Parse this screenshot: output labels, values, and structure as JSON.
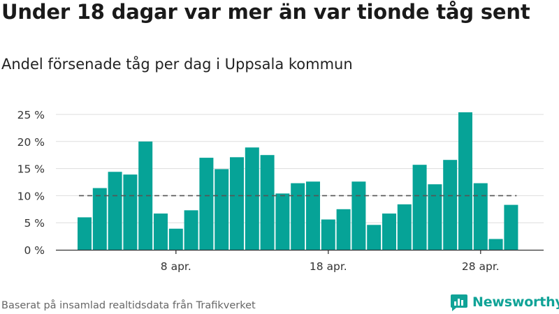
{
  "title": "Under 18 dagar var mer än var tionde tåg sent",
  "subtitle": "Andel försenade tåg per dag i Uppsala kommun",
  "source": "Baserat på insamlad realtidsdata från Trafikverket",
  "brand": {
    "name": "Newsworthy",
    "color": "#10a397"
  },
  "colors": {
    "bar": "#06a397",
    "grid": "#dddddd",
    "reference": "#555555",
    "axis": "#333333"
  },
  "chart_data": {
    "type": "bar",
    "title": "Andel försenade tåg per dag i Uppsala kommun",
    "xlabel": "",
    "ylabel": "",
    "x_ticks": [
      {
        "label": "8 apr.",
        "index": 6
      },
      {
        "label": "18 apr.",
        "index": 16
      },
      {
        "label": "28 apr.",
        "index": 26
      }
    ],
    "y_ticks": [
      {
        "value": 0,
        "label": "0 %"
      },
      {
        "value": 5,
        "label": "5 %"
      },
      {
        "value": 10,
        "label": "10 %"
      },
      {
        "value": 15,
        "label": "15 %"
      },
      {
        "value": 20,
        "label": "20 %"
      },
      {
        "value": 25,
        "label": "25 %"
      }
    ],
    "ylim": [
      0,
      25
    ],
    "grid": true,
    "reference_line": {
      "value": 10,
      "style": "dashed"
    },
    "categories": [
      "2 apr.",
      "3 apr.",
      "4 apr.",
      "5 apr.",
      "6 apr.",
      "7 apr.",
      "8 apr.",
      "9 apr.",
      "10 apr.",
      "11 apr.",
      "12 apr.",
      "13 apr.",
      "14 apr.",
      "15 apr.",
      "16 apr.",
      "17 apr.",
      "18 apr.",
      "19 apr.",
      "20 apr.",
      "21 apr.",
      "22 apr.",
      "23 apr.",
      "24 apr.",
      "25 apr.",
      "26 apr.",
      "27 apr.",
      "28 apr.",
      "29 apr.",
      "30 apr."
    ],
    "values": [
      6.0,
      11.4,
      14.4,
      13.9,
      20.0,
      6.7,
      3.9,
      7.3,
      17.0,
      14.9,
      17.1,
      18.9,
      17.5,
      10.4,
      12.3,
      12.6,
      5.6,
      7.5,
      12.6,
      4.6,
      6.7,
      8.4,
      15.7,
      12.1,
      16.6,
      25.4,
      12.3,
      2.0,
      8.3
    ]
  }
}
